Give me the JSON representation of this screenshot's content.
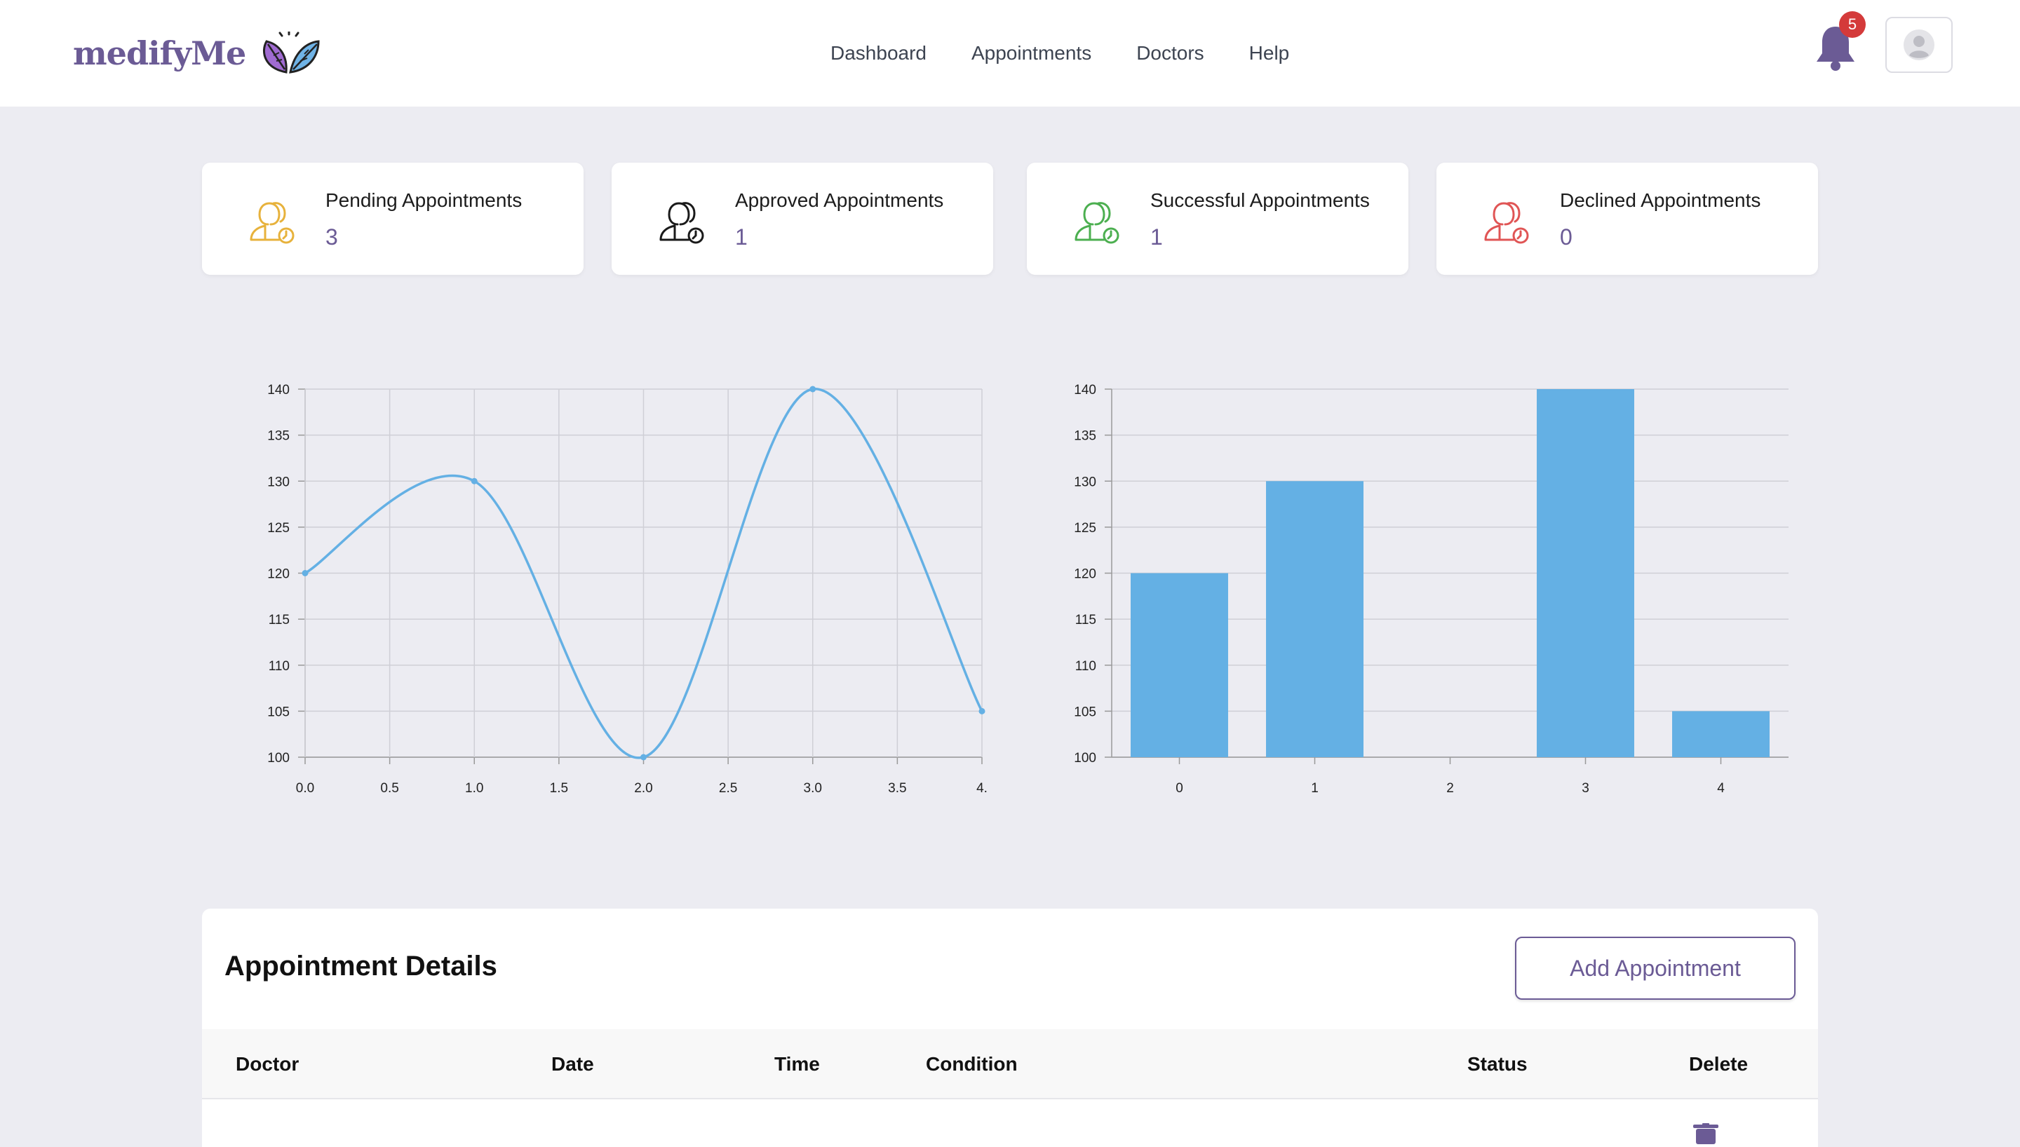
{
  "brand": {
    "name": "medifyMe",
    "accent": "#6b5b95",
    "leaf_icon": "leaf-logo-icon"
  },
  "nav": {
    "items": [
      {
        "label": "Dashboard"
      },
      {
        "label": "Appointments"
      },
      {
        "label": "Doctors"
      },
      {
        "label": "Help"
      }
    ]
  },
  "notifications": {
    "count": "5",
    "icon": "bell-icon"
  },
  "account": {
    "icon": "user-avatar-icon"
  },
  "stats": [
    {
      "title": "Pending Appointments",
      "value": "3",
      "color": "#e7b23c",
      "icon": "users-clock-icon"
    },
    {
      "title": "Approved Appointments",
      "value": "1",
      "color": "#1a1a1a",
      "icon": "users-clock-icon"
    },
    {
      "title": "Successful Appointments",
      "value": "1",
      "color": "#4caf50",
      "icon": "users-clock-icon"
    },
    {
      "title": "Declined Appointments",
      "value": "0",
      "color": "#e05555",
      "icon": "users-clock-icon"
    }
  ],
  "chart_data": [
    {
      "type": "line",
      "x": [
        0,
        1,
        2,
        3,
        4
      ],
      "values": [
        120,
        130,
        100,
        140,
        105
      ],
      "xlim": [
        0,
        4
      ],
      "ylim": [
        100,
        140
      ],
      "xticks": [
        "0.0",
        "0.5",
        "1.0",
        "1.5",
        "2.0",
        "2.5",
        "3.0",
        "3.5",
        "4."
      ],
      "yticks": [
        "100",
        "105",
        "110",
        "115",
        "120",
        "125",
        "130",
        "135",
        "140"
      ],
      "grid": true,
      "color": "#64b0e4"
    },
    {
      "type": "bar",
      "categories": [
        "0",
        "1",
        "2",
        "3",
        "4"
      ],
      "values": [
        120,
        130,
        100,
        140,
        105
      ],
      "ylim": [
        100,
        140
      ],
      "yticks": [
        "100",
        "105",
        "110",
        "115",
        "120",
        "125",
        "130",
        "135",
        "140"
      ],
      "grid": true,
      "color": "#64b0e4"
    }
  ],
  "table": {
    "title": "Appointment Details",
    "add_label": "Add Appointment",
    "columns": [
      "Doctor",
      "Date",
      "Time",
      "Condition",
      "Status",
      "Delete"
    ],
    "delete_icon": "trash-icon"
  }
}
